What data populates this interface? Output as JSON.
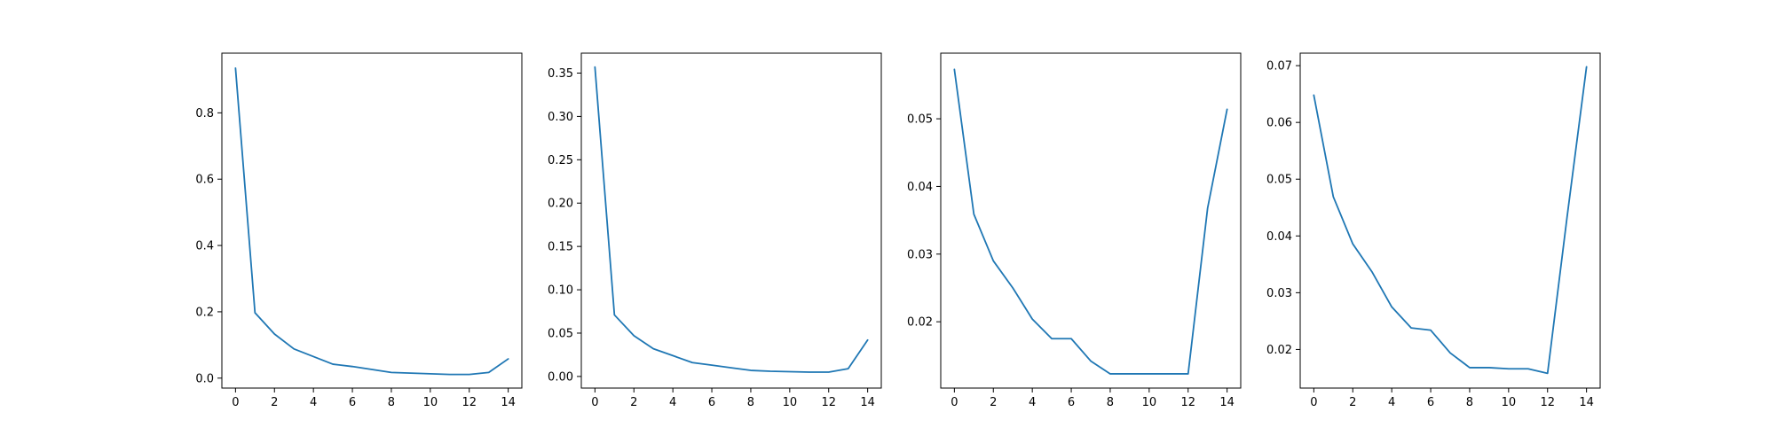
{
  "chart_data": [
    {
      "type": "line",
      "title": "",
      "xlabel": "",
      "ylabel": "",
      "grid": false,
      "xlim": [
        -0.7,
        14.7
      ],
      "ylim": [
        -0.03,
        0.98
      ],
      "xticks": [
        0,
        2,
        4,
        6,
        8,
        10,
        12,
        14
      ],
      "xtick_labels": [
        "0",
        "2",
        "4",
        "6",
        "8",
        "10",
        "12",
        "14"
      ],
      "yticks": [
        0.0,
        0.2,
        0.4,
        0.6,
        0.8
      ],
      "ytick_labels": [
        "0.0",
        "0.2",
        "0.4",
        "0.6",
        "0.8"
      ],
      "series": [
        {
          "color": "#1f77b4",
          "x": [
            0,
            1,
            2,
            3,
            4,
            5,
            6,
            7,
            8,
            9,
            10,
            11,
            12,
            13,
            14
          ],
          "values": [
            0.935,
            0.197,
            0.133,
            0.088,
            0.065,
            0.042,
            0.035,
            0.026,
            0.017,
            0.015,
            0.013,
            0.011,
            0.011,
            0.017,
            0.058
          ]
        }
      ]
    },
    {
      "type": "line",
      "title": "",
      "xlabel": "",
      "ylabel": "",
      "grid": false,
      "xlim": [
        -0.7,
        14.7
      ],
      "ylim": [
        -0.0134,
        0.373
      ],
      "xticks": [
        0,
        2,
        4,
        6,
        8,
        10,
        12,
        14
      ],
      "xtick_labels": [
        "0",
        "2",
        "4",
        "6",
        "8",
        "10",
        "12",
        "14"
      ],
      "yticks": [
        0.0,
        0.05,
        0.1,
        0.15,
        0.2,
        0.25,
        0.3,
        0.35
      ],
      "ytick_labels": [
        "0.00",
        "0.05",
        "0.10",
        "0.15",
        "0.20",
        "0.25",
        "0.30",
        "0.35"
      ],
      "series": [
        {
          "color": "#1f77b4",
          "x": [
            0,
            1,
            2,
            3,
            4,
            5,
            6,
            7,
            8,
            9,
            10,
            11,
            12,
            13,
            14
          ],
          "values": [
            0.357,
            0.071,
            0.047,
            0.032,
            0.024,
            0.016,
            0.013,
            0.01,
            0.007,
            0.006,
            0.0055,
            0.005,
            0.005,
            0.009,
            0.042
          ]
        }
      ]
    },
    {
      "type": "line",
      "title": "",
      "xlabel": "",
      "ylabel": "",
      "grid": false,
      "xlim": [
        -0.7,
        14.7
      ],
      "ylim": [
        0.0102,
        0.0597
      ],
      "xticks": [
        0,
        2,
        4,
        6,
        8,
        10,
        12,
        14
      ],
      "xtick_labels": [
        "0",
        "2",
        "4",
        "6",
        "8",
        "10",
        "12",
        "14"
      ],
      "yticks": [
        0.02,
        0.03,
        0.04,
        0.05
      ],
      "ytick_labels": [
        "0.02",
        "0.03",
        "0.04",
        "0.05"
      ],
      "series": [
        {
          "color": "#1f77b4",
          "x": [
            0,
            1,
            2,
            3,
            4,
            5,
            6,
            7,
            8,
            9,
            10,
            11,
            12,
            13,
            14
          ],
          "values": [
            0.0573,
            0.0359,
            0.029,
            0.025,
            0.0204,
            0.0175,
            0.0175,
            0.0142,
            0.0123,
            0.0123,
            0.0123,
            0.0123,
            0.0123,
            0.0368,
            0.0514
          ]
        }
      ]
    },
    {
      "type": "line",
      "title": "",
      "xlabel": "",
      "ylabel": "",
      "grid": false,
      "xlim": [
        -0.7,
        14.7
      ],
      "ylim": [
        0.0132,
        0.0722
      ],
      "xticks": [
        0,
        2,
        4,
        6,
        8,
        10,
        12,
        14
      ],
      "xtick_labels": [
        "0",
        "2",
        "4",
        "6",
        "8",
        "10",
        "12",
        "14"
      ],
      "yticks": [
        0.02,
        0.03,
        0.04,
        0.05,
        0.06,
        0.07
      ],
      "ytick_labels": [
        "0.02",
        "0.03",
        "0.04",
        "0.05",
        "0.06",
        "0.07"
      ],
      "series": [
        {
          "color": "#1f77b4",
          "x": [
            0,
            1,
            2,
            3,
            4,
            5,
            6,
            7,
            8,
            9,
            10,
            11,
            12,
            13,
            14
          ],
          "values": [
            0.0648,
            0.0469,
            0.0386,
            0.0336,
            0.0275,
            0.0238,
            0.0234,
            0.0194,
            0.0168,
            0.0168,
            0.0166,
            0.0166,
            0.0158,
            0.0433,
            0.0698
          ]
        }
      ]
    }
  ]
}
